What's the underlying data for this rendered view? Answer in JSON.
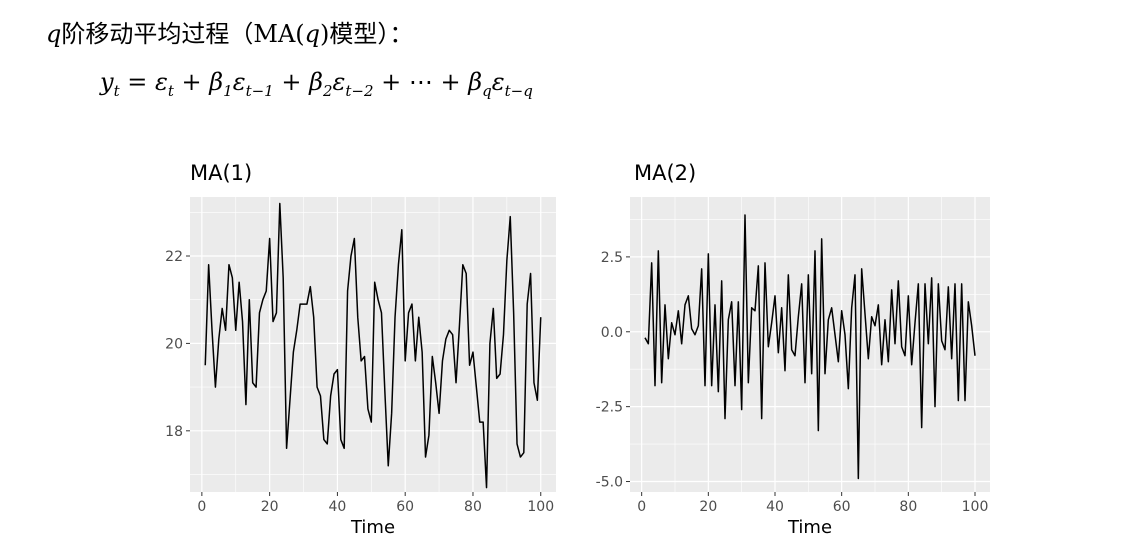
{
  "heading": {
    "q": "q",
    "text": "阶移动平均过程（MA(",
    "q2": "q",
    "text2": ")模型）："
  },
  "formula": {
    "y": "y",
    "t": "t",
    "eq": " = ",
    "eps": "ε",
    "plus": " + ",
    "beta": "β",
    "s1": "1",
    "sm1": "t−1",
    "s2": "2",
    "sm2": "t−2",
    "dots": " + ⋯ + ",
    "sq": "q",
    "smq": "t−q"
  },
  "chart_data": [
    {
      "type": "line",
      "title": "MA(1)",
      "xlabel": "Time",
      "ylabel": "",
      "xlim": [
        -3.5,
        104.5
      ],
      "ylim": [
        16.6,
        23.35
      ],
      "xticks": [
        0,
        20,
        40,
        60,
        80,
        100
      ],
      "yticks": [
        18,
        20,
        22
      ],
      "ytick_labels": [
        "18",
        "20",
        "22"
      ],
      "grid": true,
      "background": "#ebebeb",
      "line_color": "#000000",
      "x_start": 1,
      "values": [
        19.5,
        21.8,
        20.3,
        19.0,
        20.1,
        20.8,
        20.3,
        21.8,
        21.5,
        20.3,
        21.4,
        20.5,
        18.6,
        21.0,
        19.1,
        19.0,
        20.7,
        21.0,
        21.2,
        22.4,
        20.5,
        20.7,
        23.2,
        21.5,
        17.6,
        18.7,
        19.8,
        20.3,
        20.9,
        20.9,
        20.9,
        21.3,
        20.6,
        19.0,
        18.8,
        17.8,
        17.7,
        18.8,
        19.3,
        19.4,
        17.8,
        17.6,
        21.2,
        22.0,
        22.4,
        20.6,
        19.6,
        19.7,
        18.5,
        18.2,
        21.4,
        21.0,
        20.7,
        18.9,
        17.2,
        18.4,
        20.6,
        21.8,
        22.6,
        19.6,
        20.7,
        20.9,
        19.6,
        20.6,
        19.8,
        17.4,
        17.9,
        19.7,
        19.1,
        18.4,
        19.6,
        20.1,
        20.3,
        20.2,
        19.1,
        20.4,
        21.8,
        21.6,
        19.5,
        19.8,
        19.0,
        18.2,
        18.2,
        16.7,
        20.0,
        20.8,
        19.2,
        19.3,
        20.2,
        21.9,
        22.9,
        20.7,
        17.7,
        17.4,
        17.5,
        20.9,
        21.6,
        19.1,
        18.7,
        20.6
      ]
    },
    {
      "type": "line",
      "title": "MA(2)",
      "xlabel": "Time",
      "ylabel": "",
      "xlim": [
        -3.5,
        104.5
      ],
      "ylim": [
        -5.35,
        4.5
      ],
      "xticks": [
        0,
        20,
        40,
        60,
        80,
        100
      ],
      "yticks": [
        -5,
        -2.5,
        0,
        2.5
      ],
      "ytick_labels": [
        "-5.0",
        "-2.5",
        "0.0",
        "2.5"
      ],
      "grid": true,
      "background": "#ebebeb",
      "line_color": "#000000",
      "x_start": 1,
      "values": [
        -0.2,
        -0.4,
        2.3,
        -1.8,
        2.7,
        -1.7,
        0.9,
        -0.9,
        0.3,
        -0.1,
        0.7,
        -0.4,
        0.9,
        1.2,
        0.1,
        -0.1,
        0.2,
        2.1,
        -1.8,
        2.6,
        -1.8,
        0.9,
        -2.0,
        1.7,
        -2.9,
        0.4,
        1.0,
        -1.8,
        1.0,
        -2.6,
        3.9,
        -1.7,
        0.8,
        0.7,
        2.2,
        -2.9,
        2.3,
        -0.5,
        0.3,
        1.2,
        -0.7,
        0.8,
        -1.3,
        1.9,
        -0.6,
        -0.8,
        0.5,
        1.6,
        -1.7,
        1.9,
        -1.4,
        2.7,
        -3.3,
        3.1,
        -1.4,
        0.4,
        0.8,
        -0.1,
        -1.0,
        0.7,
        -0.1,
        -1.9,
        0.8,
        1.9,
        -4.9,
        2.1,
        0.6,
        -0.9,
        0.5,
        0.2,
        0.9,
        -1.1,
        0.4,
        -1.0,
        1.4,
        -0.4,
        1.7,
        -0.5,
        -0.8,
        1.2,
        -1.1,
        0.3,
        1.6,
        -3.2,
        1.6,
        -0.4,
        1.8,
        -2.5,
        1.6,
        -0.3,
        -0.6,
        1.5,
        -0.9,
        1.6,
        -2.3,
        1.6,
        -2.3,
        1.0,
        0.2,
        -0.8
      ]
    }
  ]
}
